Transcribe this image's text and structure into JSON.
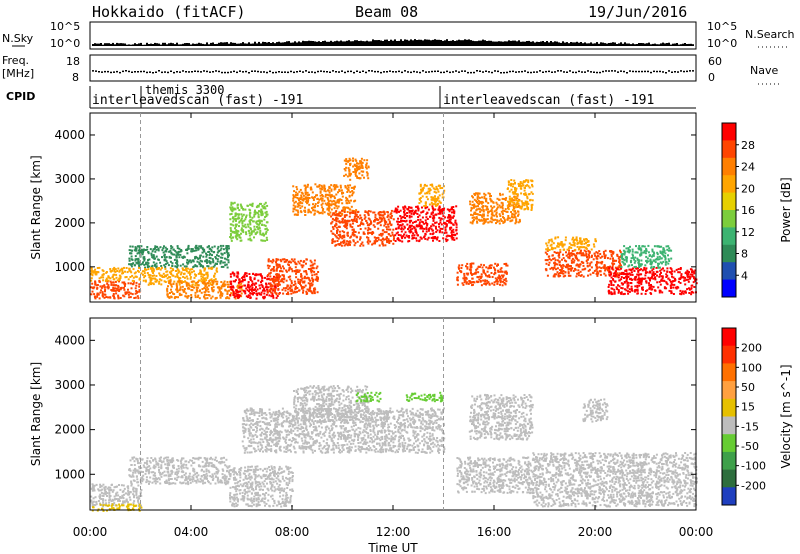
{
  "header": {
    "title": "Hokkaido (fitACF)",
    "beam": "Beam 08",
    "date": "19/Jun/2016"
  },
  "strips": {
    "sky": {
      "label": "N.Sky",
      "tick_top": "10^5",
      "tick_bottom": "10^0",
      "right_label": "N.Search"
    },
    "freq": {
      "label_1": "Freq.",
      "label_2": "[MHz]",
      "ticks_left": [
        "18",
        "8"
      ],
      "ticks_right": [
        "60",
        "0"
      ],
      "right_label": "Nave"
    },
    "cpid": {
      "label": "CPID",
      "entries": [
        "interleavedscan (fast) -191",
        "interleavedscan (fast) -191"
      ],
      "annotation": "themis 3300"
    }
  },
  "chart_data": [
    {
      "type": "heatmap",
      "ylabel": "Slant Range [km]",
      "xlabel": "",
      "ylim": [
        200,
        4500
      ],
      "yticks": [
        "1000",
        "2000",
        "3000",
        "4000"
      ],
      "colorbar": {
        "label": "Power [dB]",
        "ticks": [
          "4",
          "8",
          "12",
          "16",
          "20",
          "24",
          "28"
        ],
        "colors": [
          "#0000ff",
          "#1f4fb0",
          "#2e8b57",
          "#3cb371",
          "#7ccd3c",
          "#e6d000",
          "#ffa500",
          "#ff7f00",
          "#ff4500",
          "#ff0000"
        ]
      },
      "regions": [
        {
          "t0": 0.0,
          "t1": 2.0,
          "r0": 300,
          "r1": 700,
          "v": "#ff4500"
        },
        {
          "t0": 0.0,
          "t1": 2.0,
          "r0": 700,
          "r1": 1000,
          "v": "#ffa500"
        },
        {
          "t0": 1.5,
          "t1": 5.5,
          "r0": 1000,
          "r1": 1500,
          "v": "#2e8b57"
        },
        {
          "t0": 2.0,
          "t1": 5.0,
          "r0": 600,
          "r1": 1000,
          "v": "#ffa500"
        },
        {
          "t0": 3.0,
          "t1": 6.0,
          "r0": 300,
          "r1": 700,
          "v": "#ff7f00"
        },
        {
          "t0": 5.5,
          "t1": 7.5,
          "r0": 300,
          "r1": 900,
          "v": "#ff0000"
        },
        {
          "t0": 5.5,
          "t1": 7.0,
          "r0": 1600,
          "r1": 2500,
          "v": "#7ccd3c"
        },
        {
          "t0": 7.0,
          "t1": 9.0,
          "r0": 400,
          "r1": 1200,
          "v": "#ff4500"
        },
        {
          "t0": 8.0,
          "t1": 10.5,
          "r0": 2200,
          "r1": 2900,
          "v": "#ff7f00"
        },
        {
          "t0": 9.5,
          "t1": 12.0,
          "r0": 1500,
          "r1": 2300,
          "v": "#ff4500"
        },
        {
          "t0": 10.0,
          "t1": 11.0,
          "r0": 3000,
          "r1": 3500,
          "v": "#ff7f00"
        },
        {
          "t0": 12.0,
          "t1": 14.5,
          "r0": 1600,
          "r1": 2400,
          "v": "#ff0000"
        },
        {
          "t0": 13.0,
          "t1": 14.0,
          "r0": 2400,
          "r1": 2900,
          "v": "#ffa500"
        },
        {
          "t0": 14.5,
          "t1": 16.5,
          "r0": 600,
          "r1": 1100,
          "v": "#ff4500"
        },
        {
          "t0": 15.0,
          "t1": 17.0,
          "r0": 2000,
          "r1": 2700,
          "v": "#ff7f00"
        },
        {
          "t0": 16.5,
          "t1": 17.5,
          "r0": 2300,
          "r1": 3000,
          "v": "#ffa500"
        },
        {
          "t0": 18.0,
          "t1": 21.0,
          "r0": 800,
          "r1": 1400,
          "v": "#ff4500"
        },
        {
          "t0": 18.0,
          "t1": 20.0,
          "r0": 1400,
          "r1": 1700,
          "v": "#ffa500"
        },
        {
          "t0": 20.5,
          "t1": 24.0,
          "r0": 400,
          "r1": 1000,
          "v": "#ff0000"
        },
        {
          "t0": 21.0,
          "t1": 23.0,
          "r0": 1000,
          "r1": 1500,
          "v": "#3cb371"
        }
      ]
    },
    {
      "type": "heatmap",
      "ylabel": "Slant Range [km]",
      "xlabel": "Time UT",
      "ylim": [
        200,
        4500
      ],
      "yticks": [
        "1000",
        "2000",
        "3000",
        "4000"
      ],
      "xticks": [
        "00:00",
        "04:00",
        "08:00",
        "12:00",
        "16:00",
        "20:00",
        "00:00"
      ],
      "colorbar": {
        "label": "Velocity [m s^-1]",
        "ticks": [
          "200",
          "100",
          "50",
          "15",
          "-15",
          "-50",
          "-100",
          "-200"
        ],
        "colors": [
          "#1f3fbf",
          "#2e6e3e",
          "#3ea04a",
          "#66cc33",
          "#bdbdbd",
          "#e6c000",
          "#ffa040",
          "#ff7000",
          "#ff3000",
          "#ff0000"
        ]
      },
      "regions": [
        {
          "t0": 0.0,
          "t1": 2.0,
          "r0": 300,
          "r1": 800,
          "v": "#bdbdbd"
        },
        {
          "t0": 0.0,
          "t1": 2.0,
          "r0": 200,
          "r1": 350,
          "v": "#e6c000"
        },
        {
          "t0": 1.5,
          "t1": 5.5,
          "r0": 800,
          "r1": 1400,
          "v": "#bdbdbd"
        },
        {
          "t0": 5.5,
          "t1": 8.0,
          "r0": 300,
          "r1": 1200,
          "v": "#bdbdbd"
        },
        {
          "t0": 6.0,
          "t1": 9.0,
          "r0": 1500,
          "r1": 2500,
          "v": "#bdbdbd"
        },
        {
          "t0": 8.0,
          "t1": 11.0,
          "r0": 2200,
          "r1": 3000,
          "v": "#bdbdbd"
        },
        {
          "t0": 9.0,
          "t1": 14.0,
          "r0": 1500,
          "r1": 2500,
          "v": "#bdbdbd"
        },
        {
          "t0": 10.5,
          "t1": 11.5,
          "r0": 2650,
          "r1": 2850,
          "v": "#66cc33"
        },
        {
          "t0": 12.5,
          "t1": 14.0,
          "r0": 2650,
          "r1": 2850,
          "v": "#66cc33"
        },
        {
          "t0": 14.5,
          "t1": 17.5,
          "r0": 600,
          "r1": 1400,
          "v": "#bdbdbd"
        },
        {
          "t0": 15.0,
          "t1": 17.5,
          "r0": 1800,
          "r1": 2800,
          "v": "#bdbdbd"
        },
        {
          "t0": 17.5,
          "t1": 24.0,
          "r0": 300,
          "r1": 1500,
          "v": "#bdbdbd"
        },
        {
          "t0": 19.5,
          "t1": 20.5,
          "r0": 2200,
          "r1": 2700,
          "v": "#bdbdbd"
        }
      ]
    }
  ]
}
